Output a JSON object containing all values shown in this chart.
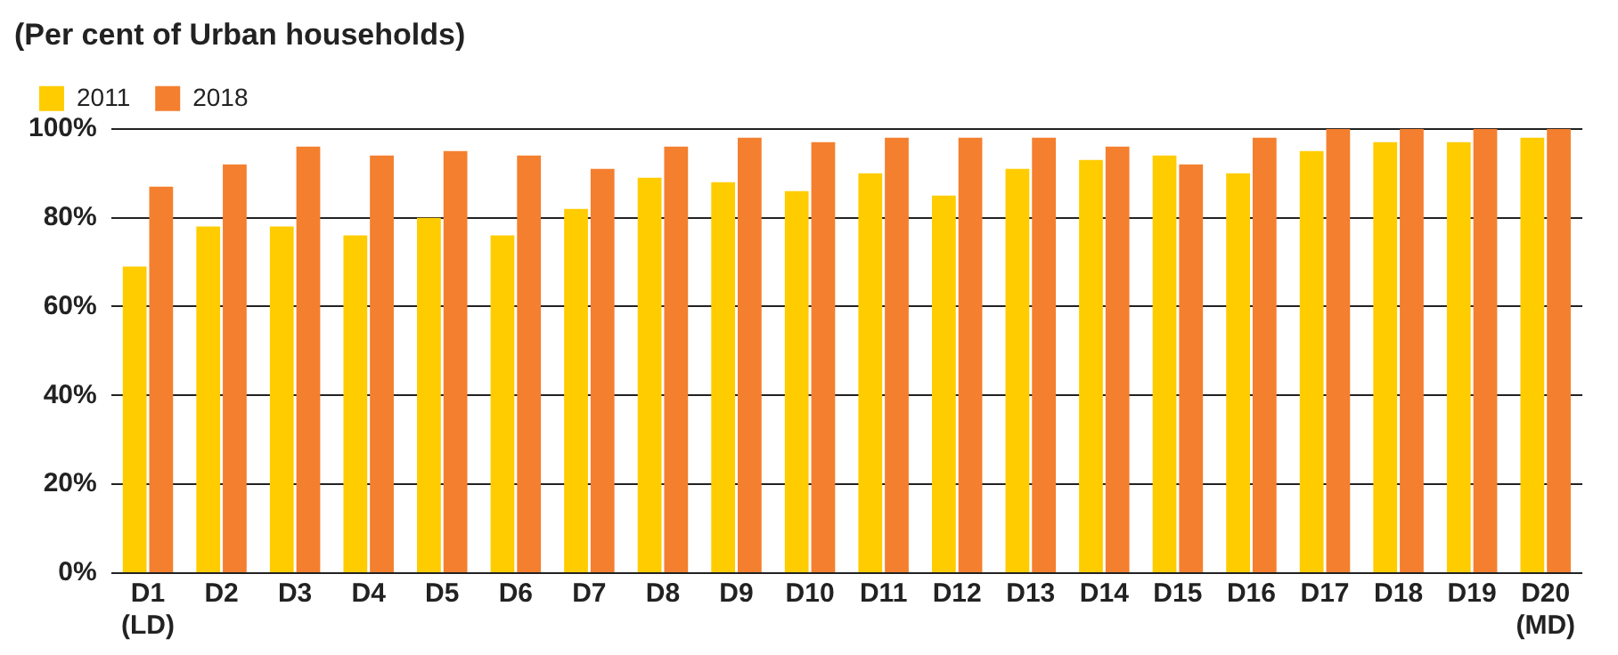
{
  "chart_data": {
    "type": "bar",
    "title": "(Per cent of Urban households)",
    "categories": [
      "D1\n(LD)",
      "D2",
      "D3",
      "D4",
      "D5",
      "D6",
      "D7",
      "D8",
      "D9",
      "D10",
      "D11",
      "D12",
      "D13",
      "D14",
      "D15",
      "D16",
      "D17",
      "D18",
      "D19",
      "D20\n(MD)"
    ],
    "series": [
      {
        "name": "2011",
        "color": "#ffcc00",
        "values": [
          69,
          78,
          78,
          76,
          80,
          76,
          82,
          89,
          88,
          86,
          90,
          85,
          91,
          93,
          94,
          90,
          95,
          97,
          97,
          98
        ]
      },
      {
        "name": "2018",
        "color": "#f47f2f",
        "values": [
          87,
          92,
          96,
          94,
          95,
          94,
          91,
          96,
          98,
          97,
          98,
          98,
          98,
          96,
          92,
          98,
          100,
          100,
          100,
          100
        ]
      }
    ],
    "ylim": [
      0,
      100
    ],
    "yticks": [
      {
        "value": 0,
        "label": "0%"
      },
      {
        "value": 20,
        "label": "20%"
      },
      {
        "value": 40,
        "label": "40%"
      },
      {
        "value": 60,
        "label": "60%"
      },
      {
        "value": 80,
        "label": "80%"
      },
      {
        "value": 100,
        "label": "100%"
      }
    ],
    "grid": "y",
    "legend": "top left"
  }
}
